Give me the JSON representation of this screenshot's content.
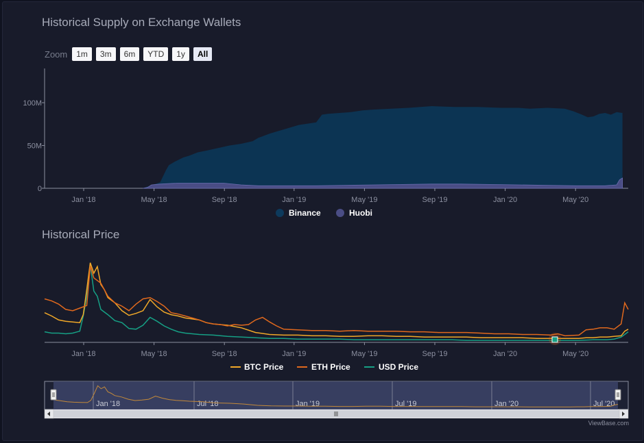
{
  "colors": {
    "binance": "#0c3453",
    "binance_top": "#0d3a5c",
    "huobi": "#4a4d85",
    "btc": "#f2a928",
    "eth": "#e1691d",
    "usd": "#16a085",
    "text": "#a7abb9",
    "axis": "#8c90a0"
  },
  "supply_chart": {
    "title": "Historical Supply on Exchange Wallets",
    "zoom_label": "Zoom",
    "zoom_buttons": [
      "1m",
      "3m",
      "6m",
      "YTD",
      "1y",
      "All"
    ],
    "active_zoom": "All",
    "y_ticks": [
      "100M",
      "50M",
      "0"
    ],
    "x_ticks": [
      "Jan '18",
      "May '18",
      "Sep '18",
      "Jan '19",
      "May '19",
      "Sep '19",
      "Jan '20",
      "May '20"
    ],
    "legend": [
      "Binance",
      "Huobi"
    ]
  },
  "price_chart": {
    "title": "Historical Price",
    "x_ticks": [
      "Jan '18",
      "May '18",
      "Sep '18",
      "Jan '19",
      "May '19",
      "Sep '19",
      "Jan '20",
      "May '20"
    ],
    "legend": [
      "BTC Price",
      "ETH Price",
      "USD Price"
    ]
  },
  "navigator": {
    "labels": [
      "Jan '18",
      "Jul '18",
      "Jan '19",
      "Jul '19",
      "Jan '20",
      "Jul '20"
    ]
  },
  "credit": "ViewBase.com",
  "chart_data": [
    {
      "type": "area",
      "title": "Historical Supply on Exchange Wallets",
      "x_unit": "days since 2017-11-01",
      "ylim": [
        0,
        140000000
      ],
      "grid": false,
      "legend_position": "bottom",
      "series": [
        {
          "name": "Binance",
          "points": [
            [
              0,
              0
            ],
            [
              8,
              2000000
            ],
            [
              30,
              7000000
            ],
            [
              40,
              21000000
            ],
            [
              45,
              27000000
            ],
            [
              55,
              31000000
            ],
            [
              70,
              36000000
            ],
            [
              80,
              38000000
            ],
            [
              95,
              42000000
            ],
            [
              110,
              44000000
            ],
            [
              130,
              47000000
            ],
            [
              150,
              50000000
            ],
            [
              170,
              52000000
            ],
            [
              190,
              55000000
            ],
            [
              200,
              59000000
            ],
            [
              220,
              64000000
            ],
            [
              250,
              70000000
            ],
            [
              270,
              74000000
            ],
            [
              290,
              76000000
            ],
            [
              300,
              77000000
            ],
            [
              310,
              86000000
            ],
            [
              320,
              87000000
            ],
            [
              340,
              88000000
            ],
            [
              360,
              89000000
            ],
            [
              380,
              91000000
            ],
            [
              400,
              92000000
            ],
            [
              430,
              93000000
            ],
            [
              460,
              94000000
            ],
            [
              480,
              95000000
            ],
            [
              500,
              96000000
            ],
            [
              540,
              95000000
            ],
            [
              580,
              95000000
            ],
            [
              620,
              94000000
            ],
            [
              650,
              94000000
            ],
            [
              670,
              93000000
            ],
            [
              700,
              94000000
            ],
            [
              730,
              93000000
            ],
            [
              745,
              90000000
            ],
            [
              760,
              86000000
            ],
            [
              770,
              83000000
            ],
            [
              780,
              84000000
            ],
            [
              790,
              87000000
            ],
            [
              800,
              88000000
            ],
            [
              810,
              86000000
            ],
            [
              820,
              89000000
            ],
            [
              830,
              88000000
            ]
          ]
        },
        {
          "name": "Huobi",
          "points": [
            [
              0,
              0
            ],
            [
              8,
              1000000
            ],
            [
              15,
              4000000
            ],
            [
              30,
              5000000
            ],
            [
              60,
              6000000
            ],
            [
              100,
              6000000
            ],
            [
              140,
              6000000
            ],
            [
              170,
              4000000
            ],
            [
              200,
              3000000
            ],
            [
              250,
              3000000
            ],
            [
              300,
              3000000
            ],
            [
              350,
              3500000
            ],
            [
              400,
              4000000
            ],
            [
              450,
              4500000
            ],
            [
              500,
              5000000
            ],
            [
              550,
              5000000
            ],
            [
              600,
              4500000
            ],
            [
              650,
              4000000
            ],
            [
              700,
              3500000
            ],
            [
              750,
              3000000
            ],
            [
              800,
              3000000
            ],
            [
              820,
              4000000
            ],
            [
              825,
              10000000
            ],
            [
              830,
              12000000
            ]
          ]
        }
      ]
    },
    {
      "type": "line",
      "title": "Historical Price",
      "x_unit": "days since 2017-11-01",
      "y_unit": "relative",
      "ylim": [
        0,
        130
      ],
      "grid": false,
      "legend_position": "bottom",
      "series": [
        {
          "name": "BTC Price",
          "points": [
            [
              0,
              45
            ],
            [
              10,
              40
            ],
            [
              20,
              34
            ],
            [
              30,
              32
            ],
            [
              40,
              31
            ],
            [
              50,
              30
            ],
            [
              55,
              42
            ],
            [
              60,
              80
            ],
            [
              65,
              121
            ],
            [
              70,
              105
            ],
            [
              75,
              115
            ],
            [
              80,
              88
            ],
            [
              85,
              80
            ],
            [
              90,
              68
            ],
            [
              100,
              60
            ],
            [
              110,
              48
            ],
            [
              120,
              41
            ],
            [
              130,
              44
            ],
            [
              140,
              48
            ],
            [
              150,
              65
            ],
            [
              160,
              54
            ],
            [
              170,
              46
            ],
            [
              180,
              42
            ],
            [
              190,
              40
            ],
            [
              200,
              37
            ],
            [
              220,
              34
            ],
            [
              230,
              30
            ],
            [
              240,
              28
            ],
            [
              260,
              26
            ],
            [
              280,
              22
            ],
            [
              300,
              15
            ],
            [
              320,
              12
            ],
            [
              340,
              11
            ],
            [
              360,
              11
            ],
            [
              380,
              10
            ],
            [
              400,
              10
            ],
            [
              420,
              9
            ],
            [
              440,
              9
            ],
            [
              460,
              10
            ],
            [
              480,
              10
            ],
            [
              500,
              9
            ],
            [
              520,
              9
            ],
            [
              540,
              8
            ],
            [
              560,
              8
            ],
            [
              580,
              8
            ],
            [
              600,
              8
            ],
            [
              620,
              7
            ],
            [
              640,
              7
            ],
            [
              660,
              7
            ],
            [
              680,
              7
            ],
            [
              700,
              6
            ],
            [
              720,
              6
            ],
            [
              740,
              6
            ],
            [
              760,
              6
            ],
            [
              770,
              7
            ],
            [
              780,
              7
            ],
            [
              790,
              8
            ],
            [
              800,
              8
            ],
            [
              810,
              9
            ],
            [
              820,
              10
            ],
            [
              825,
              17
            ],
            [
              830,
              20
            ]
          ]
        },
        {
          "name": "ETH Price",
          "points": [
            [
              0,
              66
            ],
            [
              10,
              63
            ],
            [
              20,
              58
            ],
            [
              30,
              50
            ],
            [
              40,
              48
            ],
            [
              50,
              52
            ],
            [
              60,
              56
            ],
            [
              65,
              116
            ],
            [
              70,
              98
            ],
            [
              80,
              90
            ],
            [
              90,
              70
            ],
            [
              100,
              60
            ],
            [
              110,
              55
            ],
            [
              120,
              48
            ],
            [
              130,
              58
            ],
            [
              140,
              66
            ],
            [
              150,
              68
            ],
            [
              160,
              62
            ],
            [
              170,
              55
            ],
            [
              180,
              45
            ],
            [
              190,
              43
            ],
            [
              200,
              40
            ],
            [
              220,
              34
            ],
            [
              230,
              30
            ],
            [
              240,
              28
            ],
            [
              250,
              27
            ],
            [
              260,
              25
            ],
            [
              270,
              27
            ],
            [
              280,
              26
            ],
            [
              290,
              27
            ],
            [
              300,
              34
            ],
            [
              310,
              38
            ],
            [
              320,
              31
            ],
            [
              330,
              25
            ],
            [
              340,
              20
            ],
            [
              360,
              19
            ],
            [
              380,
              18
            ],
            [
              400,
              18
            ],
            [
              420,
              17
            ],
            [
              440,
              18
            ],
            [
              460,
              17
            ],
            [
              480,
              17
            ],
            [
              500,
              17
            ],
            [
              520,
              16
            ],
            [
              540,
              16
            ],
            [
              560,
              15
            ],
            [
              580,
              15
            ],
            [
              600,
              15
            ],
            [
              620,
              14
            ],
            [
              640,
              13
            ],
            [
              660,
              13
            ],
            [
              680,
              12
            ],
            [
              700,
              12
            ],
            [
              720,
              11
            ],
            [
              730,
              13
            ],
            [
              740,
              10
            ],
            [
              760,
              11
            ],
            [
              770,
              19
            ],
            [
              780,
              20
            ],
            [
              790,
              22
            ],
            [
              800,
              22
            ],
            [
              810,
              20
            ],
            [
              820,
              28
            ],
            [
              825,
              60
            ],
            [
              830,
              50
            ]
          ]
        },
        {
          "name": "USD Price",
          "points": [
            [
              0,
              16
            ],
            [
              10,
              14
            ],
            [
              20,
              14
            ],
            [
              30,
              13
            ],
            [
              40,
              14
            ],
            [
              50,
              17
            ],
            [
              55,
              40
            ],
            [
              60,
              70
            ],
            [
              65,
              118
            ],
            [
              70,
              78
            ],
            [
              75,
              70
            ],
            [
              80,
              50
            ],
            [
              90,
              42
            ],
            [
              100,
              33
            ],
            [
              110,
              30
            ],
            [
              120,
              21
            ],
            [
              130,
              20
            ],
            [
              140,
              26
            ],
            [
              150,
              38
            ],
            [
              160,
              32
            ],
            [
              170,
              25
            ],
            [
              180,
              20
            ],
            [
              190,
              16
            ],
            [
              200,
              14
            ],
            [
              220,
              12
            ],
            [
              240,
              11
            ],
            [
              260,
              9
            ],
            [
              280,
              8
            ],
            [
              300,
              7
            ],
            [
              320,
              6
            ],
            [
              340,
              6
            ],
            [
              360,
              5
            ],
            [
              380,
              5
            ],
            [
              400,
              5
            ],
            [
              420,
              5
            ],
            [
              440,
              4
            ],
            [
              460,
              4
            ],
            [
              480,
              4
            ],
            [
              500,
              4
            ],
            [
              520,
              4
            ],
            [
              540,
              4
            ],
            [
              560,
              4
            ],
            [
              580,
              4
            ],
            [
              600,
              3
            ],
            [
              620,
              3
            ],
            [
              640,
              3
            ],
            [
              660,
              3
            ],
            [
              680,
              3
            ],
            [
              700,
              3
            ],
            [
              720,
              3
            ],
            [
              740,
              3
            ],
            [
              760,
              3
            ],
            [
              780,
              4
            ],
            [
              800,
              4
            ],
            [
              810,
              5
            ],
            [
              820,
              8
            ],
            [
              825,
              12
            ],
            [
              830,
              16
            ]
          ]
        }
      ]
    }
  ]
}
